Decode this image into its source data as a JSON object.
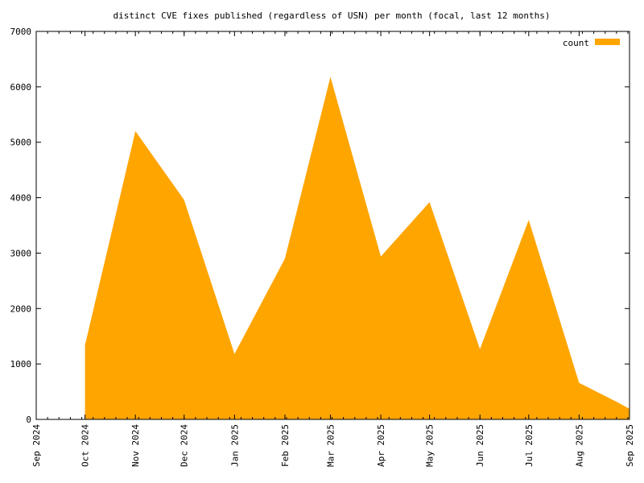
{
  "chart_data": {
    "type": "area",
    "title": "distinct CVE fixes published (regardless of USN) per month (focal, last 12 months)",
    "xlabel": "",
    "ylabel": "",
    "x_tick_labels": [
      "Sep 2024",
      "Oct 2024",
      "Nov 2024",
      "Dec 2024",
      "Jan 2025",
      "Feb 2025",
      "Mar 2025",
      "Apr 2025",
      "May 2025",
      "Jun 2025",
      "Jul 2025",
      "Aug 2025",
      "Sep 2025"
    ],
    "y_ticks": [
      0,
      1000,
      2000,
      3000,
      4000,
      5000,
      6000,
      7000
    ],
    "ylim": [
      0,
      7000
    ],
    "xlim": [
      "2024-09-01",
      "2025-09-01"
    ],
    "grid": false,
    "legend_position": "top-right",
    "series": [
      {
        "name": "count",
        "color": "#ffa500",
        "points": [
          {
            "x": "2024-10-01",
            "y": 1340
          },
          {
            "x": "2024-11-01",
            "y": 5200
          },
          {
            "x": "2024-12-01",
            "y": 3960
          },
          {
            "x": "2025-01-01",
            "y": 1180
          },
          {
            "x": "2025-02-01",
            "y": 2900
          },
          {
            "x": "2025-03-01",
            "y": 6180
          },
          {
            "x": "2025-04-01",
            "y": 2940
          },
          {
            "x": "2025-05-01",
            "y": 3920
          },
          {
            "x": "2025-06-01",
            "y": 1270
          },
          {
            "x": "2025-07-01",
            "y": 3600
          },
          {
            "x": "2025-08-01",
            "y": 660
          },
          {
            "x": "2025-08-24",
            "y": 320
          },
          {
            "x": "2025-09-01",
            "y": 190
          }
        ]
      }
    ]
  }
}
